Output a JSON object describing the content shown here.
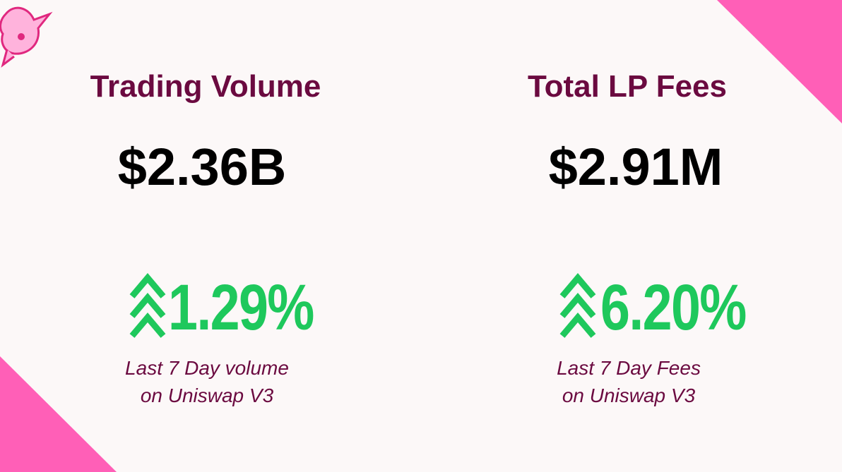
{
  "stats": [
    {
      "title": "Trading Volume",
      "value": "$2.36B",
      "change": "1.29%",
      "caption": [
        "Last 7 Day volume",
        "on Uniswap V3"
      ]
    },
    {
      "title": "Total LP Fees",
      "value": "$2.91M",
      "change": "6.20%",
      "caption": [
        "Last 7 Day Fees",
        "on Uniswap V3"
      ]
    }
  ]
}
